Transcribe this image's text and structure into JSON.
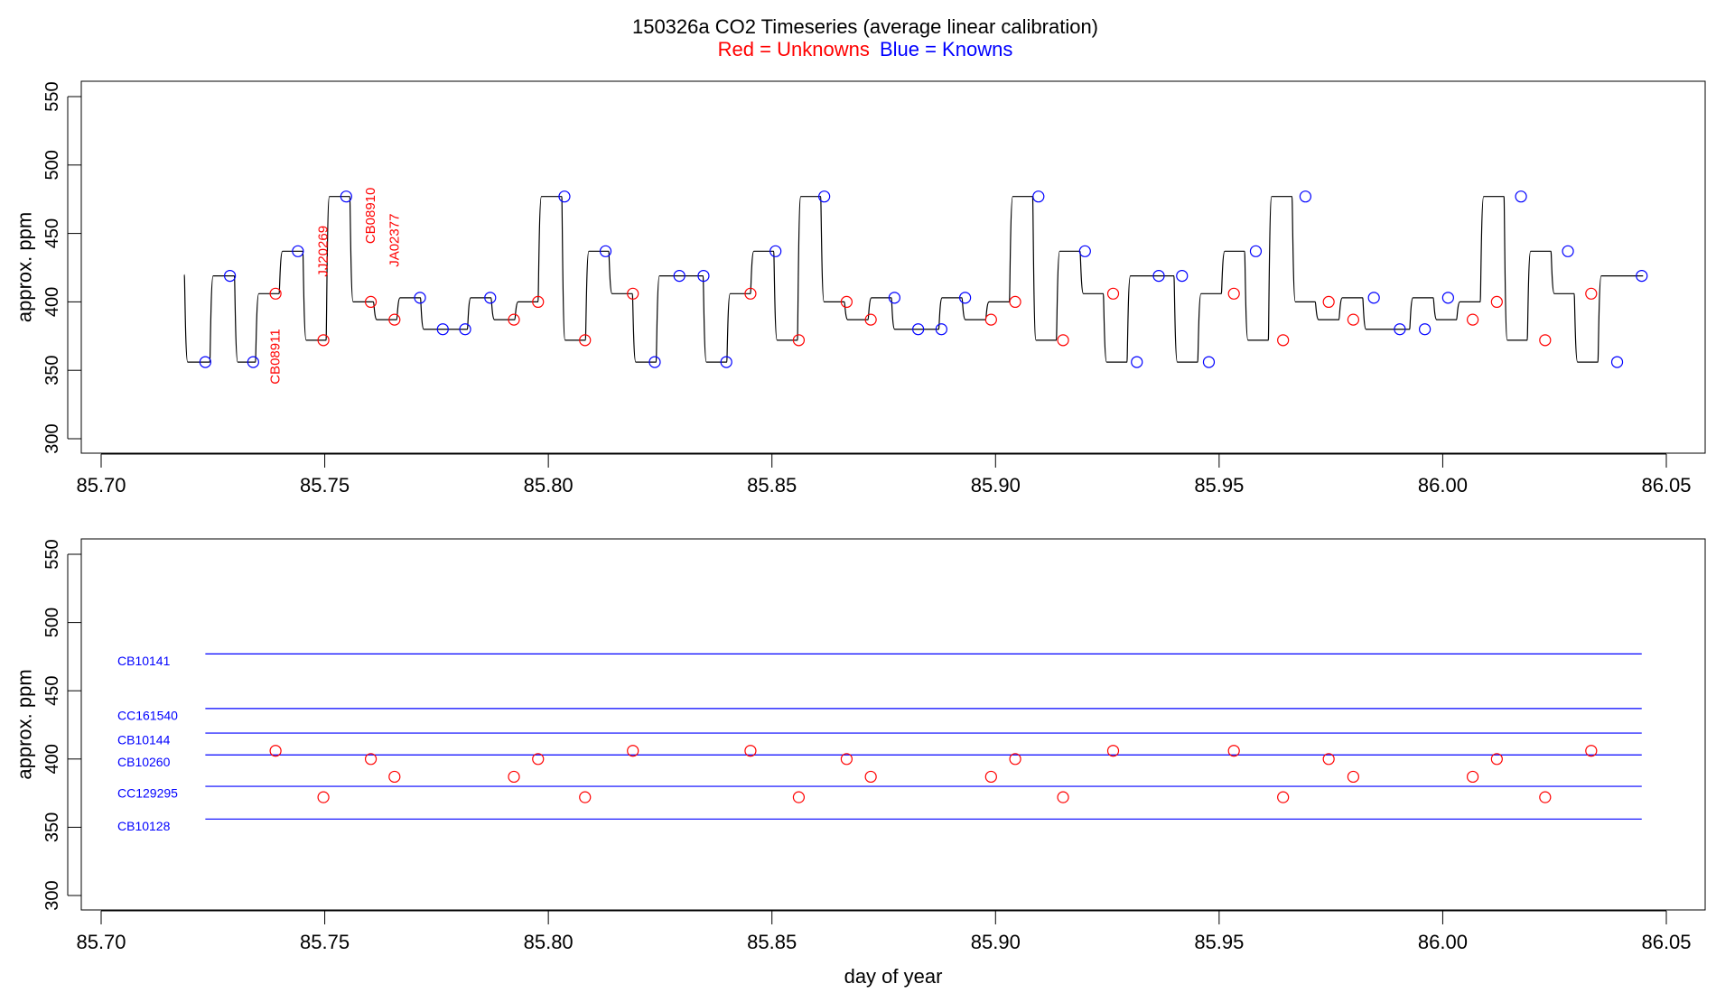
{
  "title": {
    "main": "150326a   CO2 Timeseries (average linear calibration)",
    "legend_red": "Red = Unknowns",
    "legend_blue": "Blue = Knowns"
  },
  "colors": {
    "unknowns": "#ff0000",
    "knowns": "#0000ff",
    "trace": "#000000",
    "axis": "#000000"
  },
  "chart_data": [
    {
      "type": "line",
      "title": "150326a   CO2 Timeseries (average linear calibration)",
      "xlabel": "",
      "ylabel": "approx. ppm",
      "xlim": [
        85.695,
        86.055
      ],
      "ylim": [
        290,
        560
      ],
      "xticks": [
        85.7,
        85.75,
        85.8,
        85.85,
        85.9,
        85.95,
        86.0,
        86.05
      ],
      "xtick_labels": [
        "85.70",
        "85.75",
        "85.80",
        "85.85",
        "85.90",
        "85.95",
        "86.00",
        "86.05"
      ],
      "yticks": [
        300,
        350,
        400,
        450,
        500,
        550
      ],
      "ytick_labels": [
        "300",
        "350",
        "400",
        "450",
        "500",
        "550"
      ],
      "trace_start": [
        85.7186,
        420
      ],
      "segments": [
        {
          "start": 85.7186,
          "end": 85.7243,
          "value": 356,
          "kind": "known"
        },
        {
          "start": 85.7243,
          "end": 85.7298,
          "value": 419,
          "kind": "known"
        },
        {
          "start": 85.7298,
          "end": 85.7345,
          "value": 356,
          "kind": "known"
        },
        {
          "start": 85.7345,
          "end": 85.7398,
          "value": 406,
          "kind": "unknown"
        },
        {
          "start": 85.7398,
          "end": 85.7451,
          "value": 437,
          "kind": "known"
        },
        {
          "start": 85.7451,
          "end": 85.7503,
          "value": 372,
          "kind": "unknown"
        },
        {
          "start": 85.7503,
          "end": 85.7556,
          "value": 477,
          "kind": "known"
        },
        {
          "start": 85.7556,
          "end": 85.7609,
          "value": 400,
          "kind": "unknown"
        },
        {
          "start": 85.7609,
          "end": 85.7661,
          "value": 387,
          "kind": "unknown"
        },
        {
          "start": 85.7661,
          "end": 85.7714,
          "value": 403,
          "kind": "known"
        },
        {
          "start": 85.7714,
          "end": 85.7819,
          "value": 380,
          "kind": "known"
        },
        {
          "start": 85.7819,
          "end": 85.7872,
          "value": 403,
          "kind": "known"
        },
        {
          "start": 85.7872,
          "end": 85.7925,
          "value": 387,
          "kind": "unknown"
        },
        {
          "start": 85.7925,
          "end": 85.7977,
          "value": 400,
          "kind": "unknown"
        },
        {
          "start": 85.7977,
          "end": 85.803,
          "value": 477,
          "kind": "known"
        },
        {
          "start": 85.803,
          "end": 85.8083,
          "value": 372,
          "kind": "unknown"
        },
        {
          "start": 85.8083,
          "end": 85.8135,
          "value": 437,
          "kind": "known"
        },
        {
          "start": 85.8135,
          "end": 85.8188,
          "value": 406,
          "kind": "unknown"
        },
        {
          "start": 85.8188,
          "end": 85.8241,
          "value": 356,
          "kind": "known"
        },
        {
          "start": 85.8241,
          "end": 85.8346,
          "value": 419,
          "kind": "known"
        },
        {
          "start": 85.8346,
          "end": 85.8399,
          "value": 356,
          "kind": "known"
        },
        {
          "start": 85.8399,
          "end": 85.8452,
          "value": 406,
          "kind": "unknown"
        },
        {
          "start": 85.8452,
          "end": 85.8504,
          "value": 437,
          "kind": "known"
        },
        {
          "start": 85.8504,
          "end": 85.8557,
          "value": 372,
          "kind": "unknown"
        },
        {
          "start": 85.8557,
          "end": 85.8609,
          "value": 477,
          "kind": "known"
        },
        {
          "start": 85.8609,
          "end": 85.8662,
          "value": 400,
          "kind": "unknown"
        },
        {
          "start": 85.8662,
          "end": 85.8715,
          "value": 387,
          "kind": "unknown"
        },
        {
          "start": 85.8715,
          "end": 85.8767,
          "value": 403,
          "kind": "known"
        },
        {
          "start": 85.8767,
          "end": 85.8873,
          "value": 380,
          "kind": "known"
        },
        {
          "start": 85.8873,
          "end": 85.8925,
          "value": 403,
          "kind": "known"
        },
        {
          "start": 85.8925,
          "end": 85.8978,
          "value": 387,
          "kind": "unknown"
        },
        {
          "start": 85.8978,
          "end": 85.9031,
          "value": 400,
          "kind": "unknown"
        },
        {
          "start": 85.9031,
          "end": 85.9083,
          "value": 477,
          "kind": "known"
        },
        {
          "start": 85.9083,
          "end": 85.9136,
          "value": 372,
          "kind": "unknown"
        },
        {
          "start": 85.9136,
          "end": 85.9189,
          "value": 437,
          "kind": "known"
        },
        {
          "start": 85.9189,
          "end": 85.9241,
          "value": 406,
          "kind": "unknown"
        },
        {
          "start": 85.9241,
          "end": 85.9294,
          "value": 356,
          "kind": "known"
        },
        {
          "start": 85.9294,
          "end": 85.9399,
          "value": 419,
          "kind": "known"
        },
        {
          "start": 85.9399,
          "end": 85.9452,
          "value": 356,
          "kind": "known"
        },
        {
          "start": 85.9452,
          "end": 85.9505,
          "value": 406,
          "kind": "unknown"
        },
        {
          "start": 85.9505,
          "end": 85.9557,
          "value": 437,
          "kind": "known"
        },
        {
          "start": 85.9557,
          "end": 85.961,
          "value": 372,
          "kind": "unknown"
        },
        {
          "start": 85.961,
          "end": 85.9663,
          "value": 477,
          "kind": "known"
        },
        {
          "start": 85.9663,
          "end": 85.9715,
          "value": 400,
          "kind": "unknown"
        },
        {
          "start": 85.9715,
          "end": 85.9768,
          "value": 387,
          "kind": "unknown"
        },
        {
          "start": 85.9768,
          "end": 85.9821,
          "value": 403,
          "kind": "known"
        },
        {
          "start": 85.9821,
          "end": 85.9926,
          "value": 380,
          "kind": "known"
        },
        {
          "start": 85.9926,
          "end": 85.9979,
          "value": 403,
          "kind": "known"
        },
        {
          "start": 85.9979,
          "end": 86.0031,
          "value": 387,
          "kind": "unknown"
        },
        {
          "start": 86.0031,
          "end": 86.0084,
          "value": 400,
          "kind": "unknown"
        },
        {
          "start": 86.0084,
          "end": 86.0137,
          "value": 477,
          "kind": "known"
        },
        {
          "start": 86.0137,
          "end": 86.0189,
          "value": 372,
          "kind": "unknown"
        },
        {
          "start": 86.0189,
          "end": 86.0242,
          "value": 437,
          "kind": "known"
        },
        {
          "start": 86.0242,
          "end": 86.0294,
          "value": 406,
          "kind": "unknown"
        },
        {
          "start": 86.0294,
          "end": 86.0347,
          "value": 356,
          "kind": "known"
        },
        {
          "start": 86.0347,
          "end": 86.0448,
          "value": 419,
          "kind": "known"
        }
      ],
      "knowns": [
        {
          "x": 85.7233,
          "y": 356
        },
        {
          "x": 85.7288,
          "y": 419
        },
        {
          "x": 85.734,
          "y": 356
        },
        {
          "x": 85.744,
          "y": 437
        },
        {
          "x": 85.7548,
          "y": 477
        },
        {
          "x": 85.7713,
          "y": 403
        },
        {
          "x": 85.7764,
          "y": 380
        },
        {
          "x": 85.7814,
          "y": 380
        },
        {
          "x": 85.787,
          "y": 403
        },
        {
          "x": 85.8036,
          "y": 477
        },
        {
          "x": 85.8128,
          "y": 437
        },
        {
          "x": 85.8238,
          "y": 356
        },
        {
          "x": 85.8293,
          "y": 419
        },
        {
          "x": 85.8347,
          "y": 419
        },
        {
          "x": 85.8398,
          "y": 356
        },
        {
          "x": 85.8508,
          "y": 437
        },
        {
          "x": 85.8617,
          "y": 477
        },
        {
          "x": 85.8774,
          "y": 403
        },
        {
          "x": 85.8827,
          "y": 380
        },
        {
          "x": 85.8879,
          "y": 380
        },
        {
          "x": 85.8932,
          "y": 403
        },
        {
          "x": 85.9096,
          "y": 477
        },
        {
          "x": 85.92,
          "y": 437
        },
        {
          "x": 85.9316,
          "y": 356
        },
        {
          "x": 85.9365,
          "y": 419
        },
        {
          "x": 85.9417,
          "y": 419
        },
        {
          "x": 85.9477,
          "y": 356
        },
        {
          "x": 85.9582,
          "y": 437
        },
        {
          "x": 85.9693,
          "y": 477
        },
        {
          "x": 85.9846,
          "y": 403
        },
        {
          "x": 85.9904,
          "y": 380
        },
        {
          "x": 85.996,
          "y": 380
        },
        {
          "x": 86.0012,
          "y": 403
        },
        {
          "x": 86.0175,
          "y": 477
        },
        {
          "x": 86.028,
          "y": 437
        },
        {
          "x": 86.039,
          "y": 356
        },
        {
          "x": 86.0445,
          "y": 419
        }
      ],
      "unknowns": [
        {
          "x": 85.739,
          "y": 406
        },
        {
          "x": 85.7497,
          "y": 372
        },
        {
          "x": 85.7603,
          "y": 400
        },
        {
          "x": 85.7656,
          "y": 387
        },
        {
          "x": 85.7923,
          "y": 387
        },
        {
          "x": 85.7977,
          "y": 400
        },
        {
          "x": 85.8082,
          "y": 372
        },
        {
          "x": 85.8189,
          "y": 406
        },
        {
          "x": 85.8452,
          "y": 406
        },
        {
          "x": 85.856,
          "y": 372
        },
        {
          "x": 85.8667,
          "y": 400
        },
        {
          "x": 85.8721,
          "y": 387
        },
        {
          "x": 85.899,
          "y": 387
        },
        {
          "x": 85.9044,
          "y": 400
        },
        {
          "x": 85.9151,
          "y": 372
        },
        {
          "x": 85.9263,
          "y": 406
        },
        {
          "x": 85.9533,
          "y": 406
        },
        {
          "x": 85.9643,
          "y": 372
        },
        {
          "x": 85.9745,
          "y": 400
        },
        {
          "x": 85.98,
          "y": 387
        },
        {
          "x": 86.0067,
          "y": 387
        },
        {
          "x": 86.0121,
          "y": 400
        },
        {
          "x": 86.0229,
          "y": 372
        },
        {
          "x": 86.0332,
          "y": 406
        }
      ],
      "annotations": [
        {
          "text": "CB08911",
          "x": 85.739,
          "y": 360
        },
        {
          "text": "JJ20269",
          "x": 85.7497,
          "y": 437
        },
        {
          "text": "CB08910",
          "x": 85.7603,
          "y": 463
        },
        {
          "text": "JA02377",
          "x": 85.7656,
          "y": 445
        }
      ]
    },
    {
      "type": "scatter",
      "title": "",
      "xlabel": "day of year",
      "ylabel": "approx. ppm",
      "xlim": [
        85.695,
        86.055
      ],
      "ylim": [
        290,
        560
      ],
      "xticks": [
        85.7,
        85.75,
        85.8,
        85.85,
        85.9,
        85.95,
        86.0,
        86.05
      ],
      "xtick_labels": [
        "85.70",
        "85.75",
        "85.80",
        "85.85",
        "85.90",
        "85.95",
        "86.00",
        "86.05"
      ],
      "yticks": [
        300,
        350,
        400,
        450,
        500,
        550
      ],
      "ytick_labels": [
        "300",
        "350",
        "400",
        "450",
        "500",
        "550"
      ],
      "standards": [
        {
          "name": "CB10141",
          "value": 477,
          "x_start": 85.7233,
          "x_end": 86.0445
        },
        {
          "name": "CC161540",
          "value": 437,
          "x_start": 85.7233,
          "x_end": 86.0445
        },
        {
          "name": "CB10144",
          "value": 419,
          "x_start": 85.7233,
          "x_end": 86.0445
        },
        {
          "name": "CB10260",
          "value": 403,
          "x_start": 85.7233,
          "x_end": 86.0445
        },
        {
          "name": "CC129295",
          "value": 380,
          "x_start": 85.7233,
          "x_end": 86.0445
        },
        {
          "name": "CB10128",
          "value": 356,
          "x_start": 85.7233,
          "x_end": 86.0445
        }
      ],
      "standard_labels": [
        {
          "name": "CB10141",
          "y": 472
        },
        {
          "name": "CC161540",
          "y": 432
        },
        {
          "name": "CB10144",
          "y": 414
        },
        {
          "name": "CB10260",
          "y": 398
        },
        {
          "name": "CC129295",
          "y": 375
        },
        {
          "name": "CB10128",
          "y": 351
        }
      ],
      "unknowns": [
        {
          "x": 85.739,
          "y": 406
        },
        {
          "x": 85.7497,
          "y": 372
        },
        {
          "x": 85.7603,
          "y": 400
        },
        {
          "x": 85.7656,
          "y": 387
        },
        {
          "x": 85.7923,
          "y": 387
        },
        {
          "x": 85.7977,
          "y": 400
        },
        {
          "x": 85.8082,
          "y": 372
        },
        {
          "x": 85.8189,
          "y": 406
        },
        {
          "x": 85.8452,
          "y": 406
        },
        {
          "x": 85.856,
          "y": 372
        },
        {
          "x": 85.8667,
          "y": 400
        },
        {
          "x": 85.8721,
          "y": 387
        },
        {
          "x": 85.899,
          "y": 387
        },
        {
          "x": 85.9044,
          "y": 400
        },
        {
          "x": 85.9151,
          "y": 372
        },
        {
          "x": 85.9263,
          "y": 406
        },
        {
          "x": 85.9533,
          "y": 406
        },
        {
          "x": 85.9643,
          "y": 372
        },
        {
          "x": 85.9745,
          "y": 400
        },
        {
          "x": 85.98,
          "y": 387
        },
        {
          "x": 86.0067,
          "y": 387
        },
        {
          "x": 86.0121,
          "y": 400
        },
        {
          "x": 86.0229,
          "y": 372
        },
        {
          "x": 86.0332,
          "y": 406
        }
      ]
    }
  ]
}
